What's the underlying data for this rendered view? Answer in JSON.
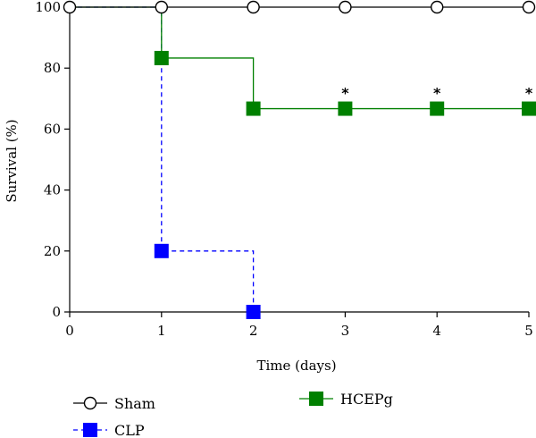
{
  "chart_data": {
    "type": "line",
    "subtype": "step",
    "xlabel": "Time (days)",
    "ylabel": "Survival (%)",
    "xlim": [
      0,
      5
    ],
    "ylim": [
      0,
      100
    ],
    "xticks": [
      "0",
      "1",
      "2",
      "3",
      "4",
      "5"
    ],
    "yticks": [
      "0",
      "20",
      "40",
      "60",
      "80",
      "100"
    ],
    "grid": false,
    "legend_position": "bottom",
    "series": [
      {
        "name": "Sham",
        "color": "#000000",
        "marker": "open-circle",
        "line_style": "solid",
        "x": [
          0,
          1,
          2,
          3,
          4,
          5
        ],
        "y": [
          100,
          100,
          100,
          100,
          100,
          100
        ]
      },
      {
        "name": "CLP",
        "color": "#0000ff",
        "marker": "filled-square",
        "line_style": "dashed",
        "x": [
          0,
          1,
          2
        ],
        "y": [
          100,
          20,
          0
        ],
        "marker_points": [
          [
            1,
            20
          ],
          [
            2,
            0
          ]
        ]
      },
      {
        "name": "HCEPg",
        "color": "#008000",
        "marker": "filled-square",
        "line_style": "solid",
        "x": [
          0,
          1,
          2,
          3,
          4,
          5
        ],
        "y": [
          100,
          83.3,
          66.7,
          66.7,
          66.7,
          66.7
        ],
        "marker_points": [
          [
            1,
            83.3
          ],
          [
            2,
            66.7
          ],
          [
            3,
            66.7
          ],
          [
            4,
            66.7
          ],
          [
            5,
            66.7
          ]
        ]
      }
    ],
    "annotations": [
      {
        "text": "*",
        "x": 3,
        "y": 66.7
      },
      {
        "text": "*",
        "x": 4,
        "y": 66.7
      },
      {
        "text": "*",
        "x": 5,
        "y": 66.7
      }
    ]
  }
}
